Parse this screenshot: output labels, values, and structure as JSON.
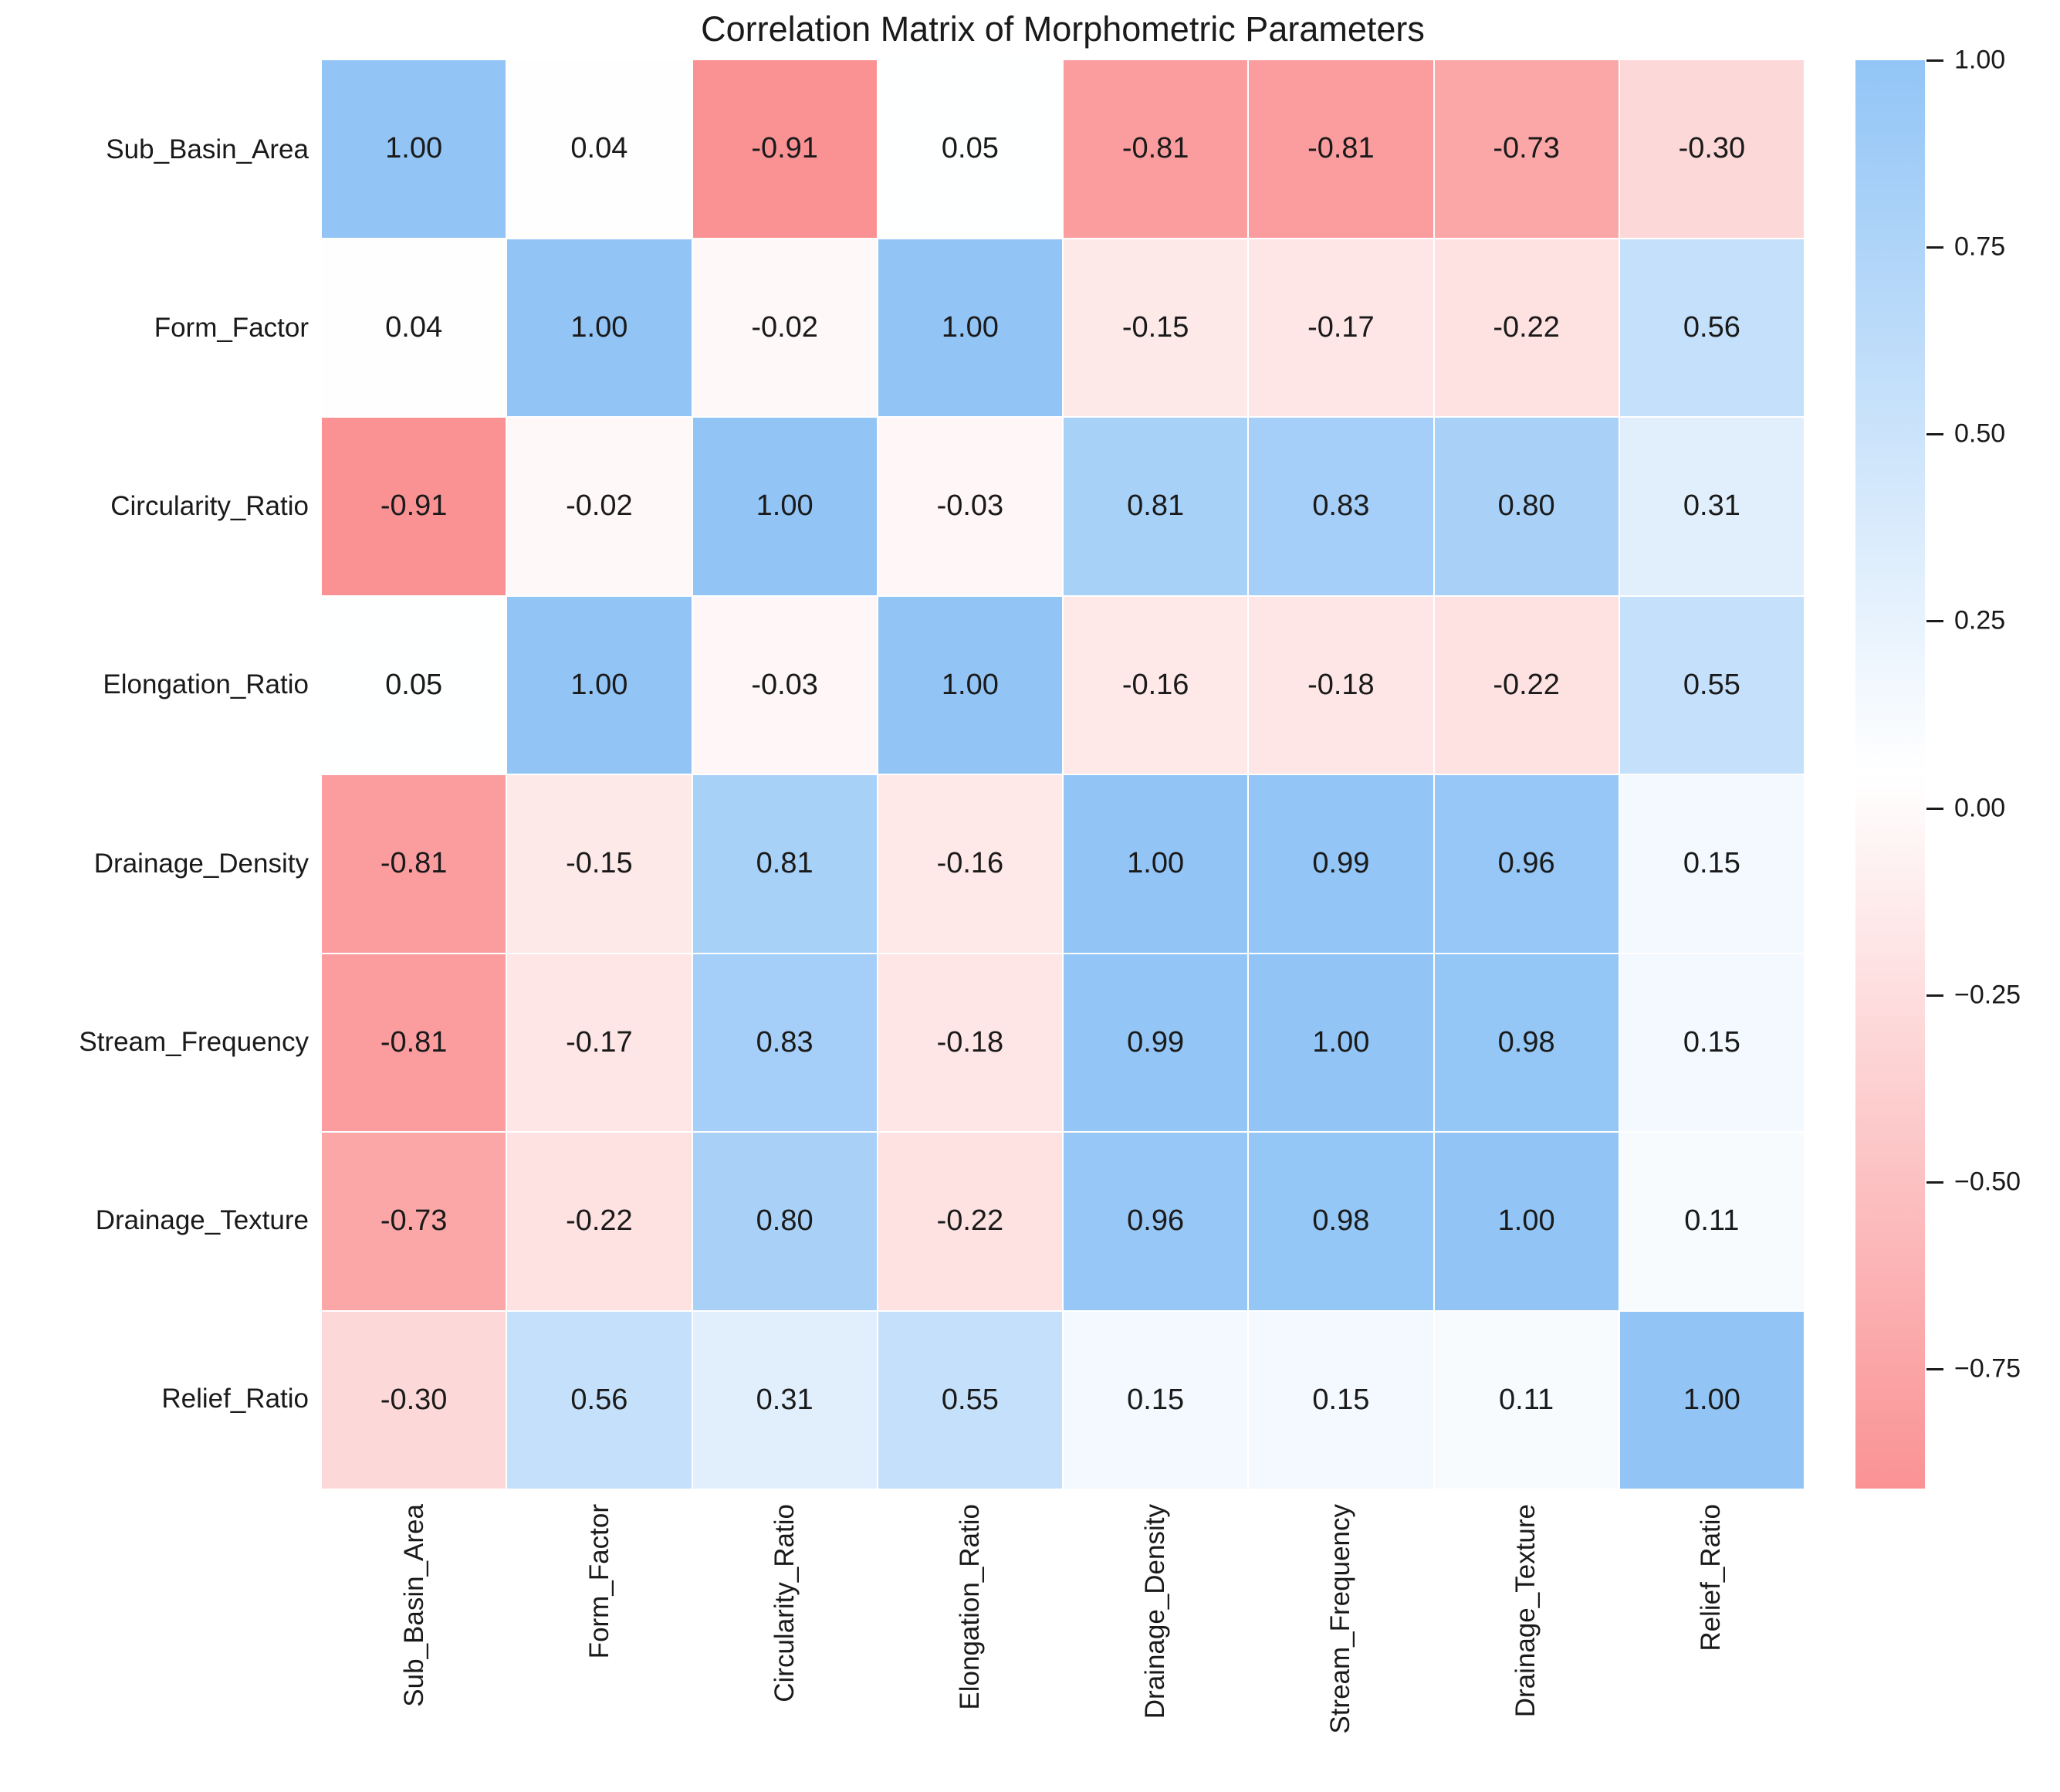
{
  "title": "Correlation Matrix of Morphometric Parameters",
  "chart_data": {
    "type": "heatmap",
    "categories": [
      "Sub_Basin_Area",
      "Form_Factor",
      "Circularity_Ratio",
      "Elongation_Ratio",
      "Drainage_Density",
      "Stream_Frequency",
      "Drainage_Texture",
      "Relief_Ratio"
    ],
    "matrix": [
      [
        1.0,
        0.04,
        -0.91,
        0.05,
        -0.81,
        -0.81,
        -0.73,
        -0.3
      ],
      [
        0.04,
        1.0,
        -0.02,
        1.0,
        -0.15,
        -0.17,
        -0.22,
        0.56
      ],
      [
        -0.91,
        -0.02,
        1.0,
        -0.03,
        0.81,
        0.83,
        0.8,
        0.31
      ],
      [
        0.05,
        1.0,
        -0.03,
        1.0,
        -0.16,
        -0.18,
        -0.22,
        0.55
      ],
      [
        -0.81,
        -0.15,
        0.81,
        -0.16,
        1.0,
        0.99,
        0.96,
        0.15
      ],
      [
        -0.81,
        -0.17,
        0.83,
        -0.18,
        0.99,
        1.0,
        0.98,
        0.15
      ],
      [
        -0.73,
        -0.22,
        0.8,
        -0.22,
        0.96,
        0.98,
        1.0,
        0.11
      ],
      [
        -0.3,
        0.56,
        0.31,
        0.55,
        0.15,
        0.15,
        0.11,
        1.0
      ]
    ],
    "annotated": true,
    "value_decimals": 2,
    "vmin": -0.91,
    "vmax": 1.0,
    "x_tick_rotation": 90,
    "grid": false,
    "colors": {
      "negative": "#FA9294",
      "zero": "#FFFFFF",
      "positive": "#92C5F6",
      "text": "#1A1A1A"
    },
    "colorbar": {
      "position": "right",
      "ticks": [
        {
          "label": "1.00",
          "value": 1.0
        },
        {
          "label": "0.75",
          "value": 0.75
        },
        {
          "label": "0.50",
          "value": 0.5
        },
        {
          "label": "0.25",
          "value": 0.25
        },
        {
          "label": "0.00",
          "value": 0.0
        },
        {
          "label": "−0.25",
          "value": -0.25
        },
        {
          "label": "−0.50",
          "value": -0.5
        },
        {
          "label": "−0.75",
          "value": -0.75
        }
      ]
    }
  }
}
